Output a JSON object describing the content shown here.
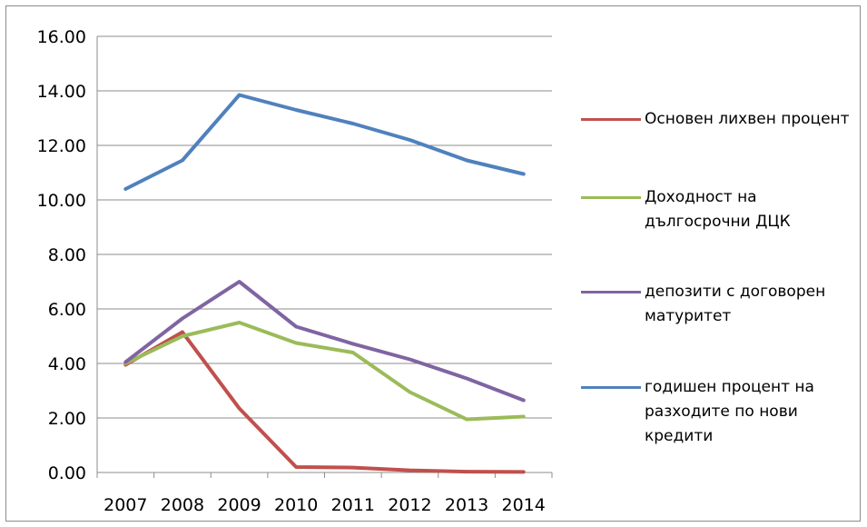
{
  "chart_data": {
    "type": "line",
    "title": "",
    "xlabel": "",
    "ylabel": "",
    "categories": [
      "2007",
      "2008",
      "2009",
      "2010",
      "2011",
      "2012",
      "2013",
      "2014"
    ],
    "ylim": [
      0,
      16
    ],
    "yticks": [
      "0.00",
      "2.00",
      "4.00",
      "6.00",
      "8.00",
      "10.00",
      "12.00",
      "14.00",
      "16.00"
    ],
    "grid": true,
    "legend_position": "right",
    "series": [
      {
        "name": "Основен лихвен процент",
        "color": "#c0504d",
        "values": [
          3.95,
          5.15,
          2.35,
          0.2,
          0.18,
          0.08,
          0.03,
          0.02
        ]
      },
      {
        "name": "Доходност на дългосрочни ДЦК",
        "color": "#9bbb59",
        "values": [
          4.0,
          5.0,
          5.5,
          4.75,
          4.4,
          2.95,
          1.95,
          2.05
        ]
      },
      {
        "name": "депозити с договорен матуритет",
        "color": "#8064a2",
        "values": [
          4.05,
          5.65,
          7.0,
          5.35,
          4.72,
          4.15,
          3.45,
          2.65
        ]
      },
      {
        "name": "годишен процент на разходите по нови кредити",
        "color": "#4f81bd",
        "values": [
          10.4,
          11.45,
          13.85,
          13.3,
          12.8,
          12.2,
          11.45,
          10.95
        ]
      }
    ]
  }
}
